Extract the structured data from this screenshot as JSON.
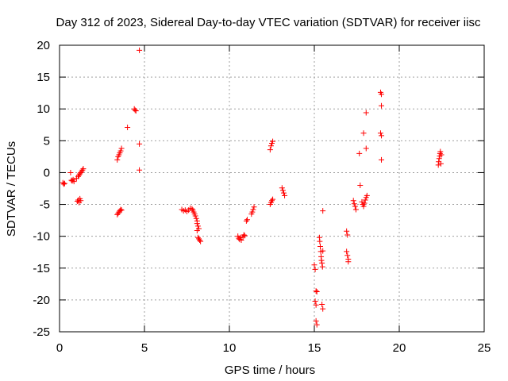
{
  "chart_data": {
    "type": "scatter",
    "title": "Day 312 of 2023, Sidereal Day-to-day VTEC variation (SDTVAR) for receiver iisc",
    "xlabel": "GPS time / hours",
    "ylabel": "SDTVAR / TECUs",
    "xlim": [
      0,
      25
    ],
    "ylim": [
      -25,
      20
    ],
    "xticks": [
      0,
      5,
      10,
      15,
      20,
      25
    ],
    "yticks": [
      -25,
      -20,
      -15,
      -10,
      -5,
      0,
      5,
      10,
      15,
      20
    ],
    "grid": true,
    "marker": "+",
    "series": [
      {
        "name": "SDTVAR",
        "color": "#ff0000",
        "points": [
          [
            0.2,
            -1.6
          ],
          [
            0.25,
            -1.8
          ],
          [
            0.3,
            -1.7
          ],
          [
            0.65,
            0.0
          ],
          [
            0.7,
            -1.2
          ],
          [
            0.75,
            -1.3
          ],
          [
            0.8,
            -1.1
          ],
          [
            0.85,
            -1.4
          ],
          [
            1.0,
            -0.9
          ],
          [
            1.05,
            -4.5
          ],
          [
            1.1,
            -4.3
          ],
          [
            1.15,
            -4.7
          ],
          [
            1.1,
            -0.6
          ],
          [
            1.15,
            -0.4
          ],
          [
            1.2,
            -0.2
          ],
          [
            1.25,
            0.0
          ],
          [
            1.3,
            0.2
          ],
          [
            1.35,
            0.4
          ],
          [
            1.4,
            0.6
          ],
          [
            1.2,
            -4.1
          ],
          [
            1.25,
            -4.4
          ],
          [
            3.4,
            2.0
          ],
          [
            3.45,
            2.5
          ],
          [
            3.5,
            2.8
          ],
          [
            3.55,
            3.1
          ],
          [
            3.6,
            3.4
          ],
          [
            3.65,
            3.8
          ],
          [
            3.4,
            -6.6
          ],
          [
            3.45,
            -6.4
          ],
          [
            3.5,
            -6.2
          ],
          [
            3.55,
            -6.0
          ],
          [
            3.6,
            -5.8
          ],
          [
            3.65,
            -5.9
          ],
          [
            4.0,
            7.1
          ],
          [
            4.4,
            10.0
          ],
          [
            4.45,
            9.8
          ],
          [
            4.5,
            9.7
          ],
          [
            4.7,
            19.2
          ],
          [
            4.7,
            4.5
          ],
          [
            4.7,
            0.4
          ],
          [
            7.2,
            -5.8
          ],
          [
            7.3,
            -6.0
          ],
          [
            7.4,
            -5.9
          ],
          [
            7.5,
            -6.1
          ],
          [
            7.6,
            -5.9
          ],
          [
            7.7,
            -5.6
          ],
          [
            7.8,
            -5.7
          ],
          [
            7.85,
            -5.9
          ],
          [
            7.9,
            -6.2
          ],
          [
            7.95,
            -6.5
          ],
          [
            8.0,
            -6.8
          ],
          [
            8.05,
            -7.2
          ],
          [
            8.1,
            -7.6
          ],
          [
            8.1,
            -8.0
          ],
          [
            8.15,
            -8.4
          ],
          [
            8.2,
            -8.8
          ],
          [
            8.1,
            -9.1
          ],
          [
            8.15,
            -10.2
          ],
          [
            8.2,
            -10.4
          ],
          [
            8.25,
            -10.6
          ],
          [
            8.3,
            -10.8
          ],
          [
            10.5,
            -10.0
          ],
          [
            10.55,
            -10.3
          ],
          [
            10.6,
            -10.5
          ],
          [
            10.65,
            -10.2
          ],
          [
            10.7,
            -10.6
          ],
          [
            10.8,
            -10.1
          ],
          [
            10.85,
            -9.8
          ],
          [
            10.9,
            -9.9
          ],
          [
            11.0,
            -7.6
          ],
          [
            11.05,
            -7.4
          ],
          [
            11.3,
            -6.5
          ],
          [
            11.35,
            -6.2
          ],
          [
            11.4,
            -5.8
          ],
          [
            11.45,
            -5.4
          ],
          [
            12.4,
            -5.0
          ],
          [
            12.45,
            -4.7
          ],
          [
            12.5,
            -4.4
          ],
          [
            12.55,
            -4.2
          ],
          [
            12.4,
            3.6
          ],
          [
            12.45,
            4.2
          ],
          [
            12.5,
            4.6
          ],
          [
            12.55,
            4.9
          ],
          [
            13.1,
            -2.4
          ],
          [
            13.15,
            -2.8
          ],
          [
            13.2,
            -3.2
          ],
          [
            13.25,
            -3.6
          ],
          [
            15.0,
            -14.5
          ],
          [
            15.05,
            -15.2
          ],
          [
            15.1,
            -18.6
          ],
          [
            15.15,
            -18.7
          ],
          [
            15.05,
            -20.2
          ],
          [
            15.1,
            -20.8
          ],
          [
            15.1,
            -23.3
          ],
          [
            15.15,
            -23.9
          ],
          [
            15.3,
            -10.2
          ],
          [
            15.32,
            -10.8
          ],
          [
            15.35,
            -11.6
          ],
          [
            15.38,
            -12.4
          ],
          [
            15.4,
            -13.2
          ],
          [
            15.42,
            -13.8
          ],
          [
            15.45,
            -14.2
          ],
          [
            15.48,
            -14.8
          ],
          [
            15.5,
            -12.3
          ],
          [
            15.5,
            -6.0
          ],
          [
            15.45,
            -20.7
          ],
          [
            15.5,
            -21.4
          ],
          [
            16.9,
            -9.2
          ],
          [
            16.95,
            -9.8
          ],
          [
            16.9,
            -12.4
          ],
          [
            16.95,
            -13.0
          ],
          [
            17.0,
            -13.6
          ],
          [
            17.0,
            -14.0
          ],
          [
            17.3,
            -4.4
          ],
          [
            17.35,
            -4.9
          ],
          [
            17.4,
            -5.3
          ],
          [
            17.45,
            -5.8
          ],
          [
            17.7,
            -2.0
          ],
          [
            17.65,
            3.0
          ],
          [
            17.9,
            6.2
          ],
          [
            17.8,
            -4.6
          ],
          [
            17.85,
            -5.0
          ],
          [
            17.9,
            -5.3
          ],
          [
            17.95,
            -4.8
          ],
          [
            18.0,
            -4.3
          ],
          [
            18.05,
            -3.9
          ],
          [
            18.1,
            -3.6
          ],
          [
            18.05,
            9.4
          ],
          [
            18.05,
            3.8
          ],
          [
            18.9,
            12.6
          ],
          [
            18.95,
            12.3
          ],
          [
            18.95,
            10.5
          ],
          [
            18.9,
            6.2
          ],
          [
            18.95,
            5.8
          ],
          [
            18.95,
            2.0
          ],
          [
            22.3,
            1.2
          ],
          [
            22.32,
            1.7
          ],
          [
            22.35,
            2.2
          ],
          [
            22.38,
            2.6
          ],
          [
            22.4,
            3.0
          ],
          [
            22.42,
            3.3
          ],
          [
            22.45,
            1.4
          ],
          [
            22.48,
            2.8
          ]
        ]
      }
    ]
  }
}
